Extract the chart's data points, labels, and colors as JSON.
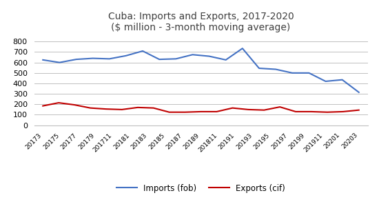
{
  "title_line1": "Cuba: Imports and Exports, 2017-2020",
  "title_line2": "($ million - 3-month moving average)",
  "x_labels": [
    "20173",
    "20175",
    "20177",
    "20179",
    "201711",
    "20181",
    "20183",
    "20185",
    "20187",
    "20189",
    "201811",
    "20191",
    "20193",
    "20195",
    "20197",
    "20199",
    "201911",
    "20201",
    "20203"
  ],
  "imports": [
    625,
    600,
    630,
    640,
    635,
    665,
    710,
    630,
    635,
    675,
    660,
    625,
    735,
    545,
    535,
    500,
    500,
    420,
    435,
    315
  ],
  "exports": [
    185,
    215,
    195,
    165,
    155,
    150,
    170,
    165,
    125,
    125,
    130,
    130,
    165,
    150,
    145,
    175,
    130,
    130,
    125,
    130,
    145
  ],
  "imports_color": "#4472C4",
  "exports_color": "#C00000",
  "ylim": [
    0,
    850
  ],
  "yticks": [
    0,
    100,
    200,
    300,
    400,
    500,
    600,
    700,
    800
  ],
  "legend_imports": "Imports (fob)",
  "legend_exports": "Exports (cif)",
  "bg_color": "#FFFFFF",
  "grid_color": "#C0C0C0"
}
